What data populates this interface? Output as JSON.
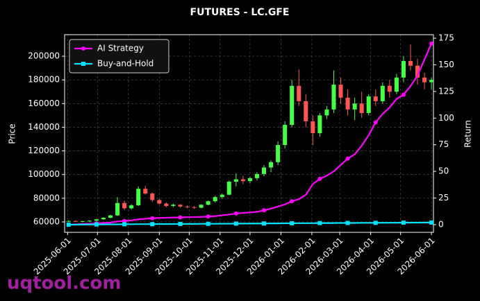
{
  "chart_data": {
    "type": "candlestick",
    "title": "FUTURES - LC.GFE",
    "ylabel": "Price",
    "y2label": "Return",
    "watermark": "uqtool.com",
    "x": [
      "2025-06-02",
      "2025-06-09",
      "2025-06-16",
      "2025-06-23",
      "2025-06-30",
      "2025-07-07",
      "2025-07-14",
      "2025-07-21",
      "2025-07-28",
      "2025-08-04",
      "2025-08-11",
      "2025-08-18",
      "2025-08-25",
      "2025-09-01",
      "2025-09-08",
      "2025-09-15",
      "2025-09-22",
      "2025-09-29",
      "2025-10-06",
      "2025-10-13",
      "2025-10-20",
      "2025-10-27",
      "2025-11-03",
      "2025-11-10",
      "2025-11-17",
      "2025-11-24",
      "2025-12-01",
      "2025-12-08",
      "2025-12-15",
      "2025-12-22",
      "2025-12-29",
      "2026-01-05",
      "2026-01-12",
      "2026-01-19",
      "2026-01-26",
      "2026-02-02",
      "2026-02-09",
      "2026-02-16",
      "2026-02-23",
      "2026-03-02",
      "2026-03-09",
      "2026-03-16",
      "2026-03-23",
      "2026-03-30",
      "2026-04-06",
      "2026-04-13",
      "2026-04-20",
      "2026-04-27",
      "2026-05-04",
      "2026-05-11",
      "2026-05-18",
      "2026-05-25",
      "2026-06-01"
    ],
    "open": [
      60500,
      60800,
      60200,
      60600,
      61000,
      62200,
      63500,
      65500,
      76000,
      71500,
      74000,
      88000,
      84000,
      78500,
      75500,
      73500,
      74500,
      73000,
      72500,
      72000,
      74500,
      77500,
      81000,
      83000,
      94000,
      96000,
      94500,
      97000,
      100500,
      106000,
      110500,
      125000,
      142000,
      175000,
      162000,
      145000,
      135000,
      150000,
      155000,
      176000,
      165000,
      155000,
      160000,
      152000,
      166000,
      162000,
      175000,
      170000,
      182000,
      196000,
      192000,
      182000,
      178000
    ],
    "high": [
      61500,
      61200,
      61000,
      61300,
      62500,
      64000,
      66000,
      81000,
      78000,
      75000,
      90000,
      90500,
      85000,
      79500,
      76500,
      75500,
      75000,
      74000,
      73500,
      75000,
      78000,
      82000,
      84000,
      95000,
      101000,
      99000,
      98000,
      102000,
      108000,
      112000,
      128000,
      145000,
      180000,
      189000,
      168000,
      150000,
      152000,
      158000,
      188000,
      182000,
      172000,
      165000,
      170000,
      168000,
      172000,
      178000,
      180000,
      185000,
      200000,
      210000,
      198000,
      186000,
      182000
    ],
    "low": [
      59800,
      59900,
      59700,
      60000,
      60600,
      61800,
      63000,
      65000,
      70000,
      70500,
      73500,
      83000,
      77000,
      74500,
      72500,
      72500,
      72000,
      71500,
      71000,
      71500,
      74000,
      76500,
      79500,
      82500,
      90000,
      92000,
      92500,
      95000,
      98500,
      102000,
      108000,
      122000,
      140000,
      158000,
      140000,
      125000,
      132000,
      147000,
      152000,
      160000,
      150000,
      146000,
      148000,
      150000,
      158000,
      160000,
      165000,
      168000,
      178000,
      188000,
      176000,
      172000,
      172000
    ],
    "close": [
      60800,
      60200,
      60600,
      61000,
      62200,
      63500,
      65500,
      76000,
      71500,
      74000,
      88000,
      84000,
      78500,
      75500,
      73500,
      74500,
      73000,
      72500,
      72000,
      74500,
      77500,
      81000,
      83000,
      94000,
      96000,
      94500,
      97000,
      100500,
      106000,
      110500,
      125000,
      142000,
      175000,
      162000,
      145000,
      135000,
      150000,
      155000,
      176000,
      165000,
      155000,
      160000,
      152000,
      166000,
      162000,
      175000,
      170000,
      182000,
      196000,
      192000,
      182000,
      178000,
      180000
    ],
    "up_color": "#44ff44",
    "down_color": "#ff5555",
    "series": [
      {
        "name": "AI Strategy",
        "color": "#ff00ff",
        "axis": "y2",
        "marker": "circle",
        "values": [
          0,
          0.3,
          0.6,
          0.9,
          1.2,
          1.6,
          2.0,
          3.0,
          3.5,
          4.0,
          5.0,
          5.5,
          6.0,
          6.3,
          6.5,
          6.7,
          6.8,
          7.0,
          7.1,
          7.3,
          7.6,
          8.0,
          8.8,
          9.5,
          10.5,
          11.0,
          11.5,
          12.0,
          13.5,
          15.0,
          17.0,
          19.0,
          22.0,
          24.0,
          28.0,
          38.0,
          43.0,
          46.0,
          50.0,
          56.0,
          62.0,
          66.0,
          74.0,
          84.0,
          96.0,
          104.0,
          110.0,
          118.0,
          122.0,
          130.0,
          140.0,
          155.0,
          170.0
        ]
      },
      {
        "name": "Buy-and-Hold",
        "color": "#00e5ff",
        "axis": "y2",
        "marker": "square",
        "values": [
          0,
          0,
          0.1,
          0.1,
          0.2,
          0.2,
          0.3,
          0.3,
          0.4,
          0.4,
          0.5,
          0.5,
          0.5,
          0.6,
          0.6,
          0.6,
          0.7,
          0.7,
          0.7,
          0.8,
          0.8,
          0.8,
          0.9,
          0.9,
          1.0,
          1.0,
          1.0,
          1.1,
          1.1,
          1.2,
          1.2,
          1.3,
          1.3,
          1.4,
          1.4,
          1.4,
          1.5,
          1.5,
          1.5,
          1.6,
          1.6,
          1.6,
          1.7,
          1.7,
          1.7,
          1.8,
          1.8,
          1.8,
          1.9,
          1.9,
          1.9,
          2.0,
          2.0
        ]
      }
    ],
    "xlim": [
      "2025-05-29",
      "2026-06-03"
    ],
    "xticks": [
      "2025-06-01",
      "2025-07-01",
      "2025-08-01",
      "2025-09-01",
      "2025-10-01",
      "2025-11-01",
      "2025-12-01",
      "2026-01-01",
      "2026-02-01",
      "2026-03-01",
      "2026-04-01",
      "2026-05-01",
      "2026-06-01"
    ],
    "ylim": [
      51200,
      218200
    ],
    "yticks": [
      60000,
      80000,
      100000,
      120000,
      140000,
      160000,
      180000,
      200000
    ],
    "y2lim": [
      -7.2,
      178.3
    ],
    "y2ticks": [
      0,
      25,
      50,
      75,
      100,
      125,
      150,
      175
    ],
    "grid": true,
    "legend": "upper-left"
  }
}
